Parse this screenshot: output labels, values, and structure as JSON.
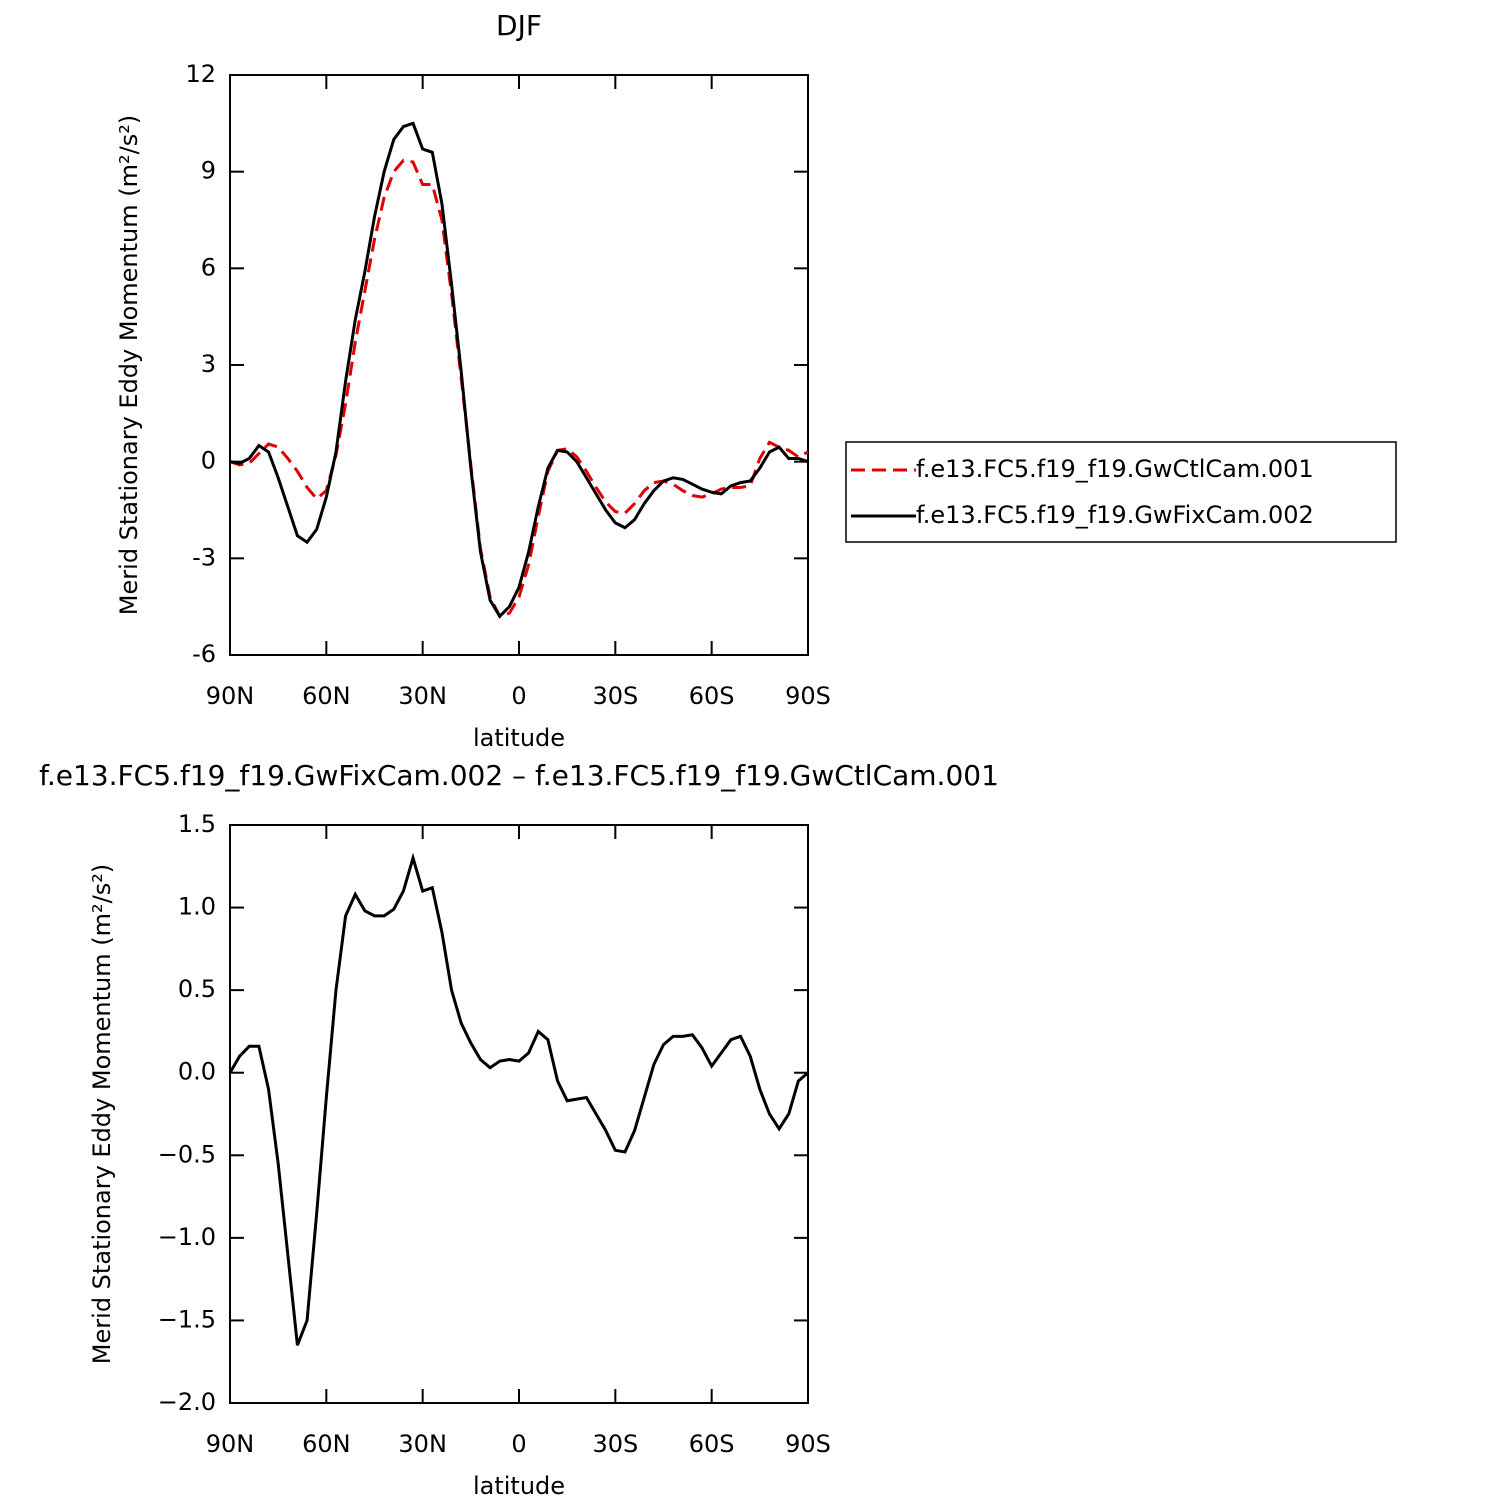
{
  "chart_data": [
    {
      "type": "line",
      "title": "DJF",
      "xlabel": "latitude",
      "ylabel": "Merid Stationary Eddy Momentum (m²/s²)",
      "x": [
        90,
        87,
        84,
        81,
        78,
        75,
        72,
        69,
        66,
        63,
        60,
        57,
        54,
        51,
        48,
        45,
        42,
        39,
        36,
        33,
        30,
        27,
        24,
        21,
        18,
        15,
        12,
        9,
        6,
        3,
        0,
        -3,
        -6,
        -9,
        -12,
        -15,
        -18,
        -21,
        -24,
        -27,
        -30,
        -33,
        -36,
        -39,
        -42,
        -45,
        -48,
        -51,
        -54,
        -57,
        -60,
        -63,
        -66,
        -69,
        -72,
        -75,
        -78,
        -81,
        -84,
        -87,
        -90
      ],
      "series": [
        {
          "name": "f.e13.FC5.f19_f19.GwCtlCam.001",
          "color": "#e00000",
          "linestyle": "dashed",
          "values": [
            0,
            -0.1,
            -0.05,
            0.25,
            0.55,
            0.45,
            0.1,
            -0.3,
            -0.8,
            -1.15,
            -0.9,
            0.2,
            1.8,
            3.7,
            5.3,
            6.9,
            8.2,
            9.0,
            9.35,
            9.3,
            8.6,
            8.6,
            7.5,
            5.2,
            2.6,
            -0.1,
            -2.7,
            -4.2,
            -4.8,
            -4.7,
            -4.2,
            -3.2,
            -1.7,
            -0.3,
            0.35,
            0.4,
            0.15,
            -0.3,
            -0.8,
            -1.25,
            -1.55,
            -1.6,
            -1.3,
            -0.9,
            -0.65,
            -0.6,
            -0.7,
            -0.9,
            -1.05,
            -1.1,
            -1.0,
            -0.85,
            -0.8,
            -0.8,
            -0.75,
            0.1,
            0.6,
            0.45,
            0.35,
            0.15,
            0.3
          ]
        },
        {
          "name": "f.e13.FC5.f19_f19.GwFixCam.002",
          "color": "#000000",
          "linestyle": "solid",
          "values": [
            0,
            -0.05,
            0.1,
            0.5,
            0.3,
            -0.5,
            -1.4,
            -2.3,
            -2.5,
            -2.1,
            -1.1,
            0.3,
            2.5,
            4.4,
            5.9,
            7.6,
            9.0,
            10.0,
            10.4,
            10.5,
            9.7,
            9.6,
            8.0,
            5.5,
            2.8,
            -0.2,
            -2.8,
            -4.3,
            -4.8,
            -4.5,
            -3.9,
            -2.8,
            -1.4,
            -0.2,
            0.35,
            0.3,
            0,
            -0.5,
            -1.0,
            -1.5,
            -1.9,
            -2.05,
            -1.8,
            -1.3,
            -0.9,
            -0.6,
            -0.5,
            -0.55,
            -0.7,
            -0.85,
            -0.95,
            -1.0,
            -0.75,
            -0.65,
            -0.6,
            -0.2,
            0.3,
            0.45,
            0.1,
            0.1,
            0
          ]
        }
      ],
      "xlim": [
        90,
        -90
      ],
      "xticks": [
        {
          "value": 90,
          "label": "90N"
        },
        {
          "value": 60,
          "label": "60N"
        },
        {
          "value": 30,
          "label": "30N"
        },
        0,
        {
          "value": -30,
          "label": "30S"
        },
        {
          "value": -60,
          "label": "60S"
        },
        {
          "value": -90,
          "label": "90S"
        }
      ],
      "ylim": [
        -6,
        12
      ],
      "yticks": [
        -6,
        -3,
        0,
        3,
        6,
        9,
        12
      ],
      "legend": "right"
    },
    {
      "type": "line",
      "title": "f.e13.FC5.f19_f19.GwFixCam.002 – f.e13.FC5.f19_f19.GwCtlCam.001",
      "xlabel": "latitude",
      "ylabel": "Merid Stationary Eddy Momentum (m²/s²)",
      "x": [
        90,
        87,
        84,
        81,
        78,
        75,
        72,
        69,
        66,
        63,
        60,
        57,
        54,
        51,
        48,
        45,
        42,
        39,
        36,
        33,
        30,
        27,
        24,
        21,
        18,
        15,
        12,
        9,
        6,
        3,
        0,
        -3,
        -6,
        -9,
        -12,
        -15,
        -18,
        -21,
        -24,
        -27,
        -30,
        -33,
        -36,
        -39,
        -42,
        -45,
        -48,
        -51,
        -54,
        -57,
        -60,
        -63,
        -66,
        -69,
        -72,
        -75,
        -78,
        -81,
        -84,
        -87,
        -90
      ],
      "series": [
        {
          "color": "#000000",
          "linestyle": "solid",
          "values": [
            0,
            0.1,
            0.16,
            0.16,
            -0.1,
            -0.55,
            -1.1,
            -1.65,
            -1.5,
            -0.85,
            -0.15,
            0.5,
            0.95,
            1.08,
            0.98,
            0.95,
            0.95,
            0.99,
            1.1,
            1.3,
            1.1,
            1.12,
            0.85,
            0.5,
            0.3,
            0.18,
            0.08,
            0.03,
            0.07,
            0.08,
            0.07,
            0.12,
            0.25,
            0.2,
            -0.05,
            -0.17,
            -0.16,
            -0.15,
            -0.25,
            -0.35,
            -0.47,
            -0.48,
            -0.35,
            -0.15,
            0.05,
            0.17,
            0.22,
            0.22,
            0.23,
            0.15,
            0.04,
            0.12,
            0.2,
            0.22,
            0.1,
            -0.1,
            -0.25,
            -0.34,
            -0.25,
            -0.05,
            0
          ]
        }
      ],
      "xlim": [
        90,
        -90
      ],
      "xticks": [
        {
          "value": 90,
          "label": "90N"
        },
        {
          "value": 60,
          "label": "60N"
        },
        {
          "value": 30,
          "label": "30N"
        },
        0,
        {
          "value": -30,
          "label": "30S"
        },
        {
          "value": -60,
          "label": "60S"
        },
        {
          "value": -90,
          "label": "90S"
        }
      ],
      "ylim": [
        -2.0,
        1.5
      ],
      "yticks": [
        {
          "value": -2.0,
          "label": "−2.0"
        },
        {
          "value": -1.5,
          "label": "−1.5"
        },
        {
          "value": -1.0,
          "label": "−1.0"
        },
        {
          "value": -0.5,
          "label": "−0.5"
        },
        {
          "value": 0,
          "label": "0.0"
        },
        0.5,
        {
          "value": 1.0,
          "label": "1.0"
        },
        1.5
      ]
    }
  ]
}
